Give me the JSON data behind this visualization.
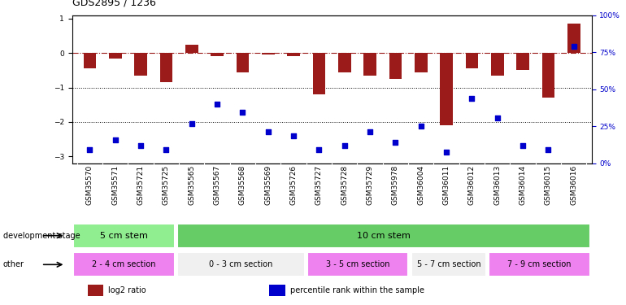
{
  "title": "GDS2895 / 1236",
  "samples": [
    "GSM35570",
    "GSM35571",
    "GSM35721",
    "GSM35725",
    "GSM35565",
    "GSM35567",
    "GSM35568",
    "GSM35569",
    "GSM35726",
    "GSM35727",
    "GSM35728",
    "GSM35729",
    "GSM35978",
    "GSM36004",
    "GSM36011",
    "GSM36012",
    "GSM36013",
    "GSM36014",
    "GSM36015",
    "GSM36016"
  ],
  "log2_ratio": [
    -0.45,
    -0.15,
    -0.65,
    -0.85,
    0.25,
    -0.08,
    -0.55,
    -0.05,
    -0.08,
    -1.2,
    -0.55,
    -0.65,
    -0.75,
    -0.55,
    -2.1,
    -0.45,
    -0.65,
    -0.5,
    -1.3,
    0.85
  ],
  "percentile_rank": [
    5,
    12,
    8,
    5,
    24,
    38,
    32,
    18,
    15,
    5,
    8,
    18,
    10,
    22,
    3,
    42,
    28,
    8,
    5,
    80
  ],
  "ylim_left": [
    -3.2,
    1.1
  ],
  "ylim_right": [
    0,
    100
  ],
  "yticks_left": [
    1,
    0,
    -1,
    -2,
    -3
  ],
  "yticks_right": [
    100,
    75,
    50,
    25,
    0
  ],
  "bar_color": "#9b1b1b",
  "dot_color": "#0000cc",
  "background_color": "#ffffff",
  "dev_stage_groups": [
    {
      "label": "5 cm stem",
      "start": 0,
      "end": 3,
      "color": "#90ee90"
    },
    {
      "label": "10 cm stem",
      "start": 4,
      "end": 19,
      "color": "#66cc66"
    }
  ],
  "other_groups": [
    {
      "label": "2 - 4 cm section",
      "start": 0,
      "end": 3,
      "color": "#ee82ee"
    },
    {
      "label": "0 - 3 cm section",
      "start": 4,
      "end": 8,
      "color": "#f0f0f0"
    },
    {
      "label": "3 - 5 cm section",
      "start": 9,
      "end": 12,
      "color": "#ee82ee"
    },
    {
      "label": "5 - 7 cm section",
      "start": 13,
      "end": 15,
      "color": "#f0f0f0"
    },
    {
      "label": "7 - 9 cm section",
      "start": 16,
      "end": 19,
      "color": "#ee82ee"
    }
  ],
  "legend_items": [
    {
      "label": "log2 ratio",
      "color": "#9b1b1b"
    },
    {
      "label": "percentile rank within the sample",
      "color": "#0000cc"
    }
  ],
  "dev_stage_label": "development stage",
  "other_label": "other",
  "tick_label_fontsize": 6.5,
  "bar_width": 0.5,
  "dot_size": 18,
  "xtick_bg_color": "#c8c8c8"
}
